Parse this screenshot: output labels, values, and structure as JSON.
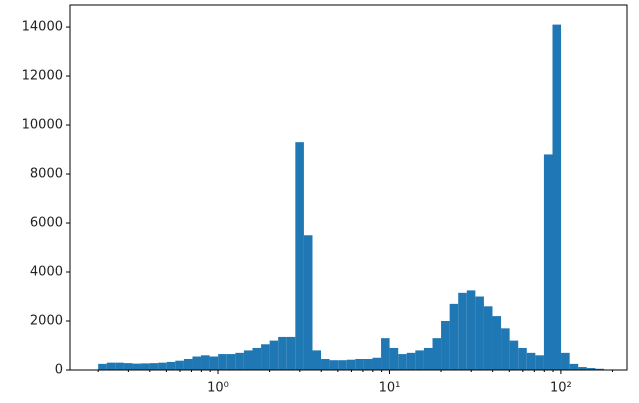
{
  "chart_data": {
    "type": "histogram",
    "color": "#1f77b4",
    "xscale": "log",
    "bins": [
      0.2,
      0.2244,
      0.2518,
      0.2825,
      0.317,
      0.3557,
      0.399,
      0.4477,
      0.5024,
      0.5637,
      0.6325,
      0.7096,
      0.7962,
      0.8934,
      1.002,
      1.125,
      1.262,
      1.416,
      1.589,
      1.783,
      2,
      2.244,
      2.518,
      2.825,
      3.17,
      3.557,
      3.99,
      4.477,
      5.024,
      5.637,
      6.325,
      7.096,
      7.962,
      8.934,
      10.02,
      11.25,
      12.62,
      14.16,
      15.89,
      17.83,
      20,
      22.44,
      25.18,
      28.25,
      31.7,
      35.57,
      39.9,
      44.77,
      50.24,
      56.37,
      63.25,
      70.96,
      79.62,
      89.34,
      100.2,
      112.5,
      126.2,
      141.6,
      158.9,
      178.3,
      200
    ],
    "counts": [
      250,
      300,
      300,
      280,
      260,
      270,
      280,
      300,
      330,
      380,
      450,
      550,
      600,
      550,
      650,
      650,
      700,
      800,
      900,
      1050,
      1200,
      1350,
      1350,
      9300,
      5500,
      800,
      450,
      400,
      400,
      420,
      450,
      450,
      500,
      1300,
      900,
      650,
      700,
      800,
      900,
      1300,
      2000,
      2700,
      3150,
      3250,
      3000,
      2600,
      2200,
      1700,
      1200,
      900,
      700,
      600,
      8800,
      14100,
      700,
      250,
      120,
      80,
      50,
      20
    ],
    "xlim": [
      0.137,
      243
    ],
    "xticks": [
      {
        "value": 1,
        "label": "10⁰"
      },
      {
        "value": 10,
        "label": "10¹"
      },
      {
        "value": 100,
        "label": "10²"
      }
    ],
    "ylim": [
      0,
      14900
    ],
    "yticks": [
      0,
      2000,
      4000,
      6000,
      8000,
      10000,
      12000,
      14000
    ]
  }
}
